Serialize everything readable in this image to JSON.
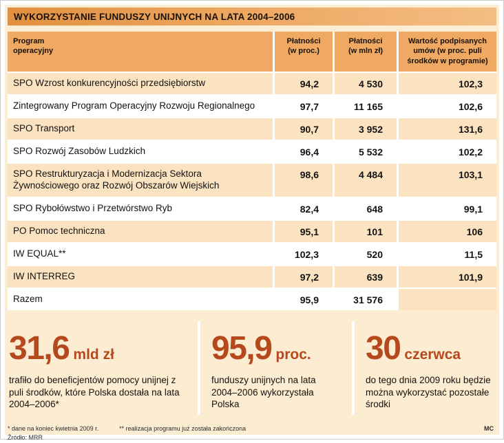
{
  "title": "WYKORZYSTANIE FUNDUSZY UNIJNYCH NA LATA 2004–2006",
  "headers": {
    "program": "Program\noperacyjny",
    "payments_percent": "Płatności\n(w proc.)",
    "payments_mln": "Płatności\n(w mln zł)",
    "contracts": "Wartość podpisanych\numów (w proc. puli\nśrodków w programie)"
  },
  "chart_data": {
    "type": "table",
    "title": "WYKORZYSTANIE FUNDUSZY UNIJNYCH NA LATA 2004–2006",
    "columns": [
      "Program operacyjny",
      "Płatności (w proc.)",
      "Płatności (w mln zł)",
      "Wartość podpisanych umów (w proc. puli środków w programie)"
    ],
    "rows": [
      [
        "SPO Wzrost konkurencyjności przedsiębiorstw",
        "94,2",
        "4 530",
        "102,3"
      ],
      [
        "Zintegrowany Program Operacyjny Rozwoju Regionalnego",
        "97,7",
        "11 165",
        "102,6"
      ],
      [
        "SPO Transport",
        "90,7",
        "3 952",
        "131,6"
      ],
      [
        "SPO Rozwój Zasobów Ludzkich",
        "96,4",
        "5 532",
        "102,2"
      ],
      [
        "SPO Restrukturyzacja i Modernizacja Sektora Żywnościowego oraz Rozwój Obszarów Wiejskich",
        "98,6",
        "4 484",
        "103,1"
      ],
      [
        "SPO Rybołówstwo i Przetwórstwo Ryb",
        "82,4",
        "648",
        "99,1"
      ],
      [
        "PO Pomoc techniczna",
        "95,1",
        "101",
        "106"
      ],
      [
        "IW EQUAL**",
        "102,3",
        "520",
        "11,5"
      ],
      [
        "IW INTERREG",
        "97,2",
        "639",
        "101,9"
      ],
      [
        "Razem",
        "95,9",
        "31 576",
        ""
      ]
    ]
  },
  "stats": [
    {
      "value": "31,6",
      "unit": "mld zł",
      "desc": "trafiło do beneficjentów pomocy unijnej z puli środków, które Polska dostała na lata 2004–2006*"
    },
    {
      "value": "95,9",
      "unit": "proc.",
      "desc": "funduszy unijnych na lata 2004–2006 wykorzystała Polska"
    },
    {
      "value": "30",
      "unit": "czerwca",
      "desc": "do tego dnia 2009 roku będzie można wykorzystać pozostałe środki"
    }
  ],
  "footnotes": {
    "note1": "* dane na koniec kwietnia 2009 r.",
    "note2": "** realizacja programu już została zakończona",
    "source": "Źródło: MRR",
    "credit": "MC"
  },
  "colors": {
    "title_bar_orange": "#eda65f",
    "header_cell_orange": "#efa963",
    "row_peach": "#fbe2c0",
    "page_peach": "#fcecd2",
    "stat_rust": "#b5491d"
  }
}
